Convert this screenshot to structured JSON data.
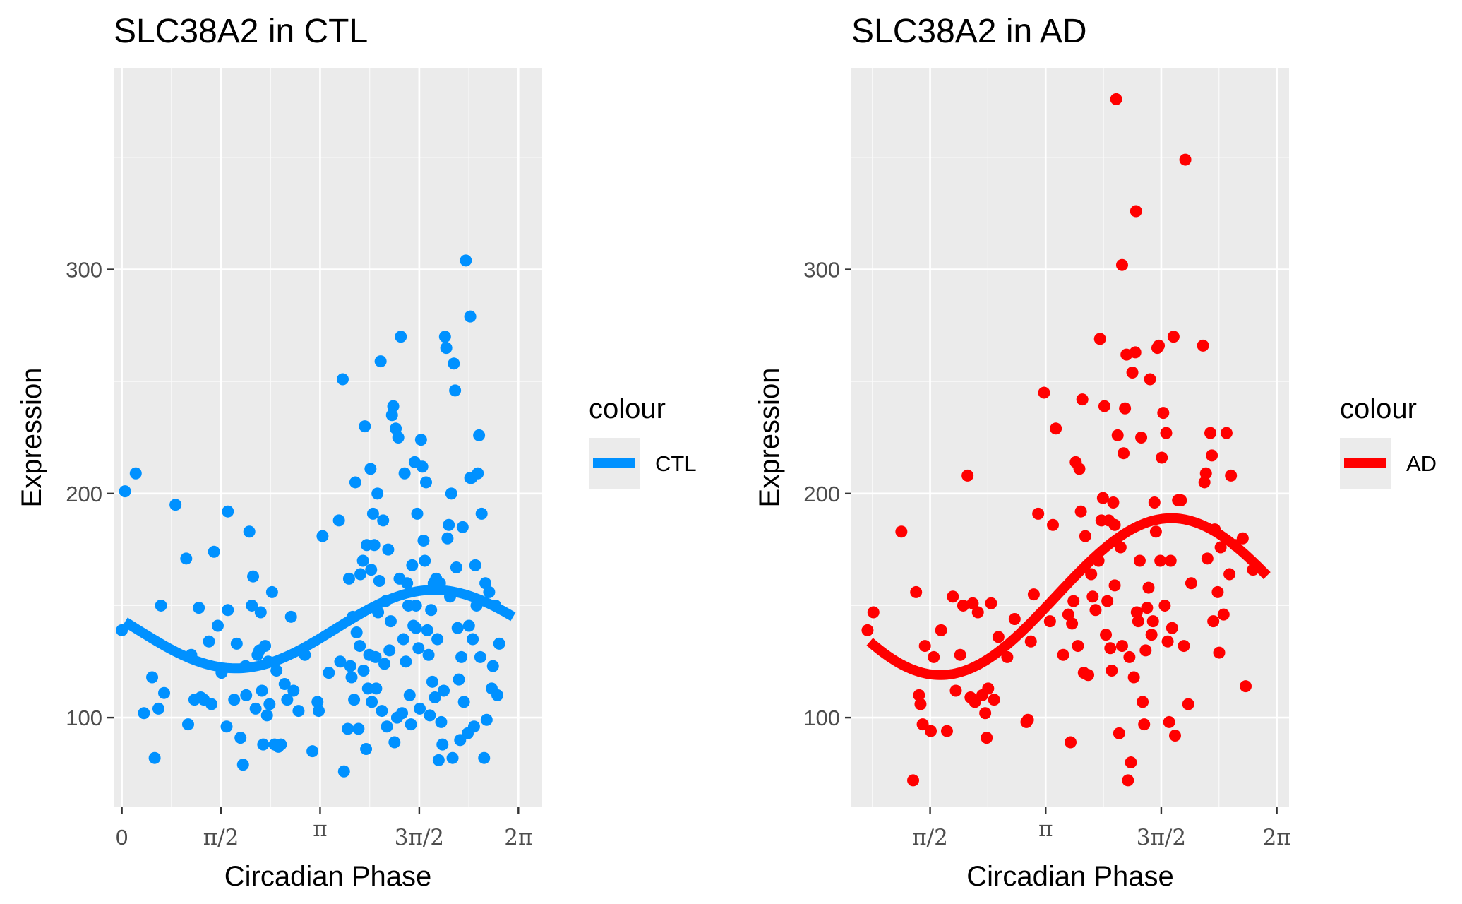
{
  "chart_data": [
    {
      "type": "scatter",
      "title": "SLC38A2 in CTL",
      "xlabel": "Circadian Phase",
      "ylabel": "Expression",
      "xlim": [
        -0.13,
        6.66
      ],
      "ylim": [
        60,
        390
      ],
      "x_ticks": [
        {
          "value": 0,
          "label": "0"
        },
        {
          "value": 1.5708,
          "label": "π/2"
        },
        {
          "value": 3.1416,
          "label": "π"
        },
        {
          "value": 4.7124,
          "label": "3π/2"
        },
        {
          "value": 6.2832,
          "label": "2π"
        }
      ],
      "y_ticks": [
        {
          "value": 100,
          "label": "100"
        },
        {
          "value": 200,
          "label": "200"
        },
        {
          "value": 300,
          "label": "300"
        }
      ],
      "grid": true,
      "legend": {
        "title": "colour",
        "label": "CTL",
        "position": "right"
      },
      "color": "#0091ff",
      "fit_curve": {
        "mesor": 139.5,
        "amplitude": 17.5,
        "peak_phase": 4.95,
        "x_range": [
          0.05,
          6.2
        ]
      },
      "points": [
        [
          0.0,
          139
        ],
        [
          0.05,
          201
        ],
        [
          0.22,
          209
        ],
        [
          0.35,
          102
        ],
        [
          0.48,
          118
        ],
        [
          0.52,
          82
        ],
        [
          0.58,
          104
        ],
        [
          0.62,
          150
        ],
        [
          0.67,
          111
        ],
        [
          0.85,
          195
        ],
        [
          1.02,
          171
        ],
        [
          1.05,
          97
        ],
        [
          1.1,
          128
        ],
        [
          1.15,
          108
        ],
        [
          1.22,
          149
        ],
        [
          1.25,
          109
        ],
        [
          1.3,
          108
        ],
        [
          1.38,
          134
        ],
        [
          1.42,
          106
        ],
        [
          1.46,
          174
        ],
        [
          1.52,
          141
        ],
        [
          1.58,
          120
        ],
        [
          1.68,
          148
        ],
        [
          1.66,
          96
        ],
        [
          1.68,
          192
        ],
        [
          1.78,
          108
        ],
        [
          1.82,
          133
        ],
        [
          1.88,
          91
        ],
        [
          1.92,
          79
        ],
        [
          1.97,
          110
        ],
        [
          2.02,
          183
        ],
        [
          2.06,
          150
        ],
        [
          2.08,
          163
        ],
        [
          2.12,
          104
        ],
        [
          2.15,
          128
        ],
        [
          2.18,
          130
        ],
        [
          2.2,
          147
        ],
        [
          2.22,
          112
        ],
        [
          2.24,
          88
        ],
        [
          2.27,
          132
        ],
        [
          2.3,
          101
        ],
        [
          2.32,
          125
        ],
        [
          2.34,
          106
        ],
        [
          2.38,
          156
        ],
        [
          2.42,
          88
        ],
        [
          2.45,
          121
        ],
        [
          2.48,
          87
        ],
        [
          2.52,
          88
        ],
        [
          2.62,
          108
        ],
        [
          2.68,
          145
        ],
        [
          2.72,
          112
        ],
        [
          2.8,
          103
        ],
        [
          2.9,
          128
        ],
        [
          3.02,
          85
        ],
        [
          3.1,
          107
        ],
        [
          3.12,
          103
        ],
        [
          3.18,
          181
        ],
        [
          3.28,
          120
        ],
        [
          3.44,
          188
        ],
        [
          3.46,
          125
        ],
        [
          3.5,
          251
        ],
        [
          3.52,
          76
        ],
        [
          3.58,
          95
        ],
        [
          3.6,
          162
        ],
        [
          3.62,
          123
        ],
        [
          3.64,
          118
        ],
        [
          3.66,
          145
        ],
        [
          3.68,
          108
        ],
        [
          3.7,
          205
        ],
        [
          3.75,
          95
        ],
        [
          3.77,
          132
        ],
        [
          3.78,
          164
        ],
        [
          3.82,
          170
        ],
        [
          3.83,
          121
        ],
        [
          3.85,
          230
        ],
        [
          3.87,
          86
        ],
        [
          3.88,
          177
        ],
        [
          3.9,
          113
        ],
        [
          3.92,
          128
        ],
        [
          3.94,
          211
        ],
        [
          3.95,
          166
        ],
        [
          3.96,
          107
        ],
        [
          3.98,
          191
        ],
        [
          4.0,
          177
        ],
        [
          4.02,
          127
        ],
        [
          4.03,
          113
        ],
        [
          4.05,
          200
        ],
        [
          4.06,
          147
        ],
        [
          4.08,
          161
        ],
        [
          4.1,
          259
        ],
        [
          4.12,
          103
        ],
        [
          4.14,
          188
        ],
        [
          4.16,
          124
        ],
        [
          4.18,
          152
        ],
        [
          4.2,
          96
        ],
        [
          4.22,
          175
        ],
        [
          4.24,
          130
        ],
        [
          4.26,
          143
        ],
        [
          4.28,
          235
        ],
        [
          4.3,
          239
        ],
        [
          4.32,
          89
        ],
        [
          4.34,
          229
        ],
        [
          4.36,
          100
        ],
        [
          4.38,
          225
        ],
        [
          4.4,
          162
        ],
        [
          4.42,
          270
        ],
        [
          4.44,
          102
        ],
        [
          4.46,
          135
        ],
        [
          4.48,
          209
        ],
        [
          4.5,
          125
        ],
        [
          4.52,
          160
        ],
        [
          4.54,
          150
        ],
        [
          4.56,
          110
        ],
        [
          4.58,
          97
        ],
        [
          4.6,
          168
        ],
        [
          4.62,
          141
        ],
        [
          4.64,
          214
        ],
        [
          4.66,
          140
        ],
        [
          4.68,
          191
        ],
        [
          4.7,
          131
        ],
        [
          4.72,
          104
        ],
        [
          4.74,
          224
        ],
        [
          4.76,
          212
        ],
        [
          4.78,
          179
        ],
        [
          4.8,
          170
        ],
        [
          4.82,
          205
        ],
        [
          4.84,
          139
        ],
        [
          4.86,
          128
        ],
        [
          4.88,
          101
        ],
        [
          4.9,
          148
        ],
        [
          4.92,
          116
        ],
        [
          4.94,
          160
        ],
        [
          4.96,
          109
        ],
        [
          4.98,
          162
        ],
        [
          5.0,
          135
        ],
        [
          5.02,
          81
        ],
        [
          5.04,
          160
        ],
        [
          5.06,
          98
        ],
        [
          5.08,
          88
        ],
        [
          5.1,
          112
        ],
        [
          5.12,
          270
        ],
        [
          5.14,
          265
        ],
        [
          5.16,
          180
        ],
        [
          5.18,
          186
        ],
        [
          5.2,
          154
        ],
        [
          5.22,
          200
        ],
        [
          5.24,
          82
        ],
        [
          5.26,
          258
        ],
        [
          5.28,
          246
        ],
        [
          5.3,
          167
        ],
        [
          5.32,
          140
        ],
        [
          5.34,
          117
        ],
        [
          5.36,
          90
        ],
        [
          5.38,
          127
        ],
        [
          5.42,
          107
        ],
        [
          5.45,
          304
        ],
        [
          5.48,
          93
        ],
        [
          5.5,
          141
        ],
        [
          5.52,
          207
        ],
        [
          5.54,
          207
        ],
        [
          5.56,
          135
        ],
        [
          5.58,
          96
        ],
        [
          5.6,
          168
        ],
        [
          5.62,
          150
        ],
        [
          5.64,
          209
        ],
        [
          5.66,
          226
        ],
        [
          5.68,
          127
        ],
        [
          5.7,
          191
        ],
        [
          5.74,
          82
        ],
        [
          5.76,
          160
        ],
        [
          5.78,
          99
        ],
        [
          5.82,
          156
        ],
        [
          5.86,
          113
        ],
        [
          5.88,
          123
        ],
        [
          5.92,
          150
        ],
        [
          5.95,
          110
        ],
        [
          5.98,
          133
        ],
        [
          5.52,
          279
        ],
        [
          5.4,
          185
        ],
        [
          4.66,
          150
        ],
        [
          3.72,
          138
        ],
        [
          2.58,
          115
        ],
        [
          1.96,
          123
        ]
      ]
    },
    {
      "type": "scatter",
      "title": "SLC38A2 in AD",
      "xlabel": "Circadian Phase",
      "ylabel": "Expression",
      "xlim": [
        0.5,
        6.45
      ],
      "ylim": [
        60,
        390
      ],
      "x_ticks": [
        {
          "value": 1.5708,
          "label": "π/2"
        },
        {
          "value": 3.1416,
          "label": "π"
        },
        {
          "value": 4.7124,
          "label": "3π/2"
        },
        {
          "value": 6.2832,
          "label": "2π"
        }
      ],
      "y_ticks": [
        {
          "value": 100,
          "label": "100"
        },
        {
          "value": 200,
          "label": "200"
        },
        {
          "value": 300,
          "label": "300"
        }
      ],
      "grid": true,
      "legend": {
        "title": "colour",
        "label": "AD",
        "position": "right"
      },
      "color": "#ff0000",
      "fit_curve": {
        "mesor": 154,
        "amplitude": 35,
        "peak_phase": 4.85,
        "x_range": [
          0.75,
          6.15
        ]
      },
      "points": [
        [
          0.72,
          139
        ],
        [
          0.8,
          147
        ],
        [
          1.18,
          183
        ],
        [
          1.34,
          72
        ],
        [
          1.38,
          156
        ],
        [
          1.42,
          110
        ],
        [
          1.44,
          106
        ],
        [
          1.47,
          97
        ],
        [
          1.5,
          132
        ],
        [
          1.58,
          94
        ],
        [
          1.62,
          127
        ],
        [
          1.72,
          139
        ],
        [
          1.8,
          94
        ],
        [
          1.88,
          154
        ],
        [
          1.92,
          112
        ],
        [
          1.98,
          128
        ],
        [
          2.02,
          150
        ],
        [
          2.08,
          208
        ],
        [
          2.12,
          109
        ],
        [
          2.15,
          151
        ],
        [
          2.18,
          107
        ],
        [
          2.22,
          147
        ],
        [
          2.28,
          110
        ],
        [
          2.32,
          102
        ],
        [
          2.34,
          91
        ],
        [
          2.36,
          113
        ],
        [
          2.4,
          151
        ],
        [
          2.44,
          108
        ],
        [
          2.5,
          136
        ],
        [
          2.62,
          127
        ],
        [
          2.72,
          144
        ],
        [
          2.88,
          98
        ],
        [
          2.9,
          99
        ],
        [
          2.94,
          134
        ],
        [
          2.98,
          155
        ],
        [
          3.04,
          191
        ],
        [
          3.12,
          245
        ],
        [
          3.2,
          143
        ],
        [
          3.24,
          186
        ],
        [
          3.28,
          229
        ],
        [
          3.38,
          128
        ],
        [
          3.45,
          146
        ],
        [
          3.48,
          89
        ],
        [
          3.5,
          142
        ],
        [
          3.52,
          152
        ],
        [
          3.55,
          214
        ],
        [
          3.58,
          132
        ],
        [
          3.6,
          211
        ],
        [
          3.62,
          192
        ],
        [
          3.64,
          242
        ],
        [
          3.66,
          120
        ],
        [
          3.68,
          181
        ],
        [
          3.72,
          119
        ],
        [
          3.76,
          164
        ],
        [
          3.78,
          154
        ],
        [
          3.82,
          148
        ],
        [
          3.86,
          170
        ],
        [
          3.88,
          269
        ],
        [
          3.9,
          188
        ],
        [
          3.92,
          198
        ],
        [
          3.94,
          239
        ],
        [
          3.96,
          137
        ],
        [
          3.98,
          152
        ],
        [
          4.0,
          188
        ],
        [
          4.02,
          131
        ],
        [
          4.04,
          121
        ],
        [
          4.06,
          196
        ],
        [
          4.08,
          159
        ],
        [
          4.12,
          226
        ],
        [
          4.14,
          93
        ],
        [
          4.16,
          176
        ],
        [
          4.18,
          132
        ],
        [
          4.2,
          218
        ],
        [
          4.22,
          238
        ],
        [
          4.24,
          262
        ],
        [
          4.26,
          72
        ],
        [
          4.28,
          127
        ],
        [
          4.3,
          80
        ],
        [
          4.32,
          254
        ],
        [
          4.34,
          118
        ],
        [
          4.36,
          263
        ],
        [
          4.38,
          147
        ],
        [
          4.4,
          143
        ],
        [
          4.42,
          170
        ],
        [
          4.44,
          225
        ],
        [
          4.46,
          107
        ],
        [
          4.48,
          97
        ],
        [
          4.5,
          130
        ],
        [
          4.52,
          149
        ],
        [
          4.54,
          158
        ],
        [
          4.56,
          251
        ],
        [
          4.58,
          137
        ],
        [
          4.6,
          143
        ],
        [
          4.62,
          196
        ],
        [
          4.64,
          183
        ],
        [
          4.66,
          265
        ],
        [
          4.68,
          266
        ],
        [
          4.7,
          170
        ],
        [
          4.72,
          216
        ],
        [
          4.74,
          236
        ],
        [
          4.76,
          150
        ],
        [
          4.78,
          227
        ],
        [
          4.8,
          134
        ],
        [
          4.82,
          98
        ],
        [
          4.84,
          170
        ],
        [
          4.86,
          140
        ],
        [
          4.88,
          270
        ],
        [
          4.9,
          92
        ],
        [
          4.94,
          197
        ],
        [
          4.98,
          197
        ],
        [
          5.02,
          132
        ],
        [
          5.08,
          106
        ],
        [
          5.12,
          160
        ],
        [
          5.28,
          266
        ],
        [
          5.3,
          205
        ],
        [
          5.32,
          209
        ],
        [
          5.34,
          171
        ],
        [
          5.38,
          227
        ],
        [
          5.4,
          217
        ],
        [
          5.42,
          143
        ],
        [
          5.44,
          184
        ],
        [
          5.48,
          156
        ],
        [
          5.5,
          129
        ],
        [
          5.52,
          176
        ],
        [
          5.56,
          146
        ],
        [
          5.6,
          227
        ],
        [
          5.64,
          164
        ],
        [
          5.66,
          208
        ],
        [
          5.72,
          177
        ],
        [
          5.82,
          180
        ],
        [
          5.86,
          114
        ],
        [
          5.96,
          166
        ],
        [
          4.1,
          376
        ],
        [
          4.18,
          302
        ],
        [
          4.37,
          326
        ],
        [
          5.04,
          349
        ],
        [
          4.08,
          186
        ]
      ]
    }
  ]
}
